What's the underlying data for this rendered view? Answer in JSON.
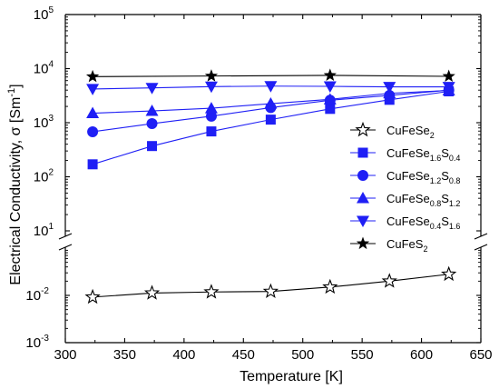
{
  "chart_data": {
    "type": "scatter",
    "xlabel": "Temperature [K]",
    "ylabel_main": "Electrical Conductivity, σ [Sm",
    "ylabel_sup": "-1",
    "ylabel_close": "]",
    "xlim": [
      300,
      650
    ],
    "xticks": [
      "300",
      "350",
      "400",
      "450",
      "500",
      "550",
      "600",
      "650"
    ],
    "yscale": "log",
    "y_axis_break": "between 10^-3..10^-1 segment and 10^1..10^5 segment",
    "ylim_lower": [
      0.001,
      0.1
    ],
    "ylim_upper": [
      10,
      100000
    ],
    "yticks_lower": [
      {
        "b": "10",
        "e": "-3"
      },
      {
        "b": "10",
        "e": "-2"
      }
    ],
    "yticks_upper": [
      {
        "b": "10",
        "e": "1"
      },
      {
        "b": "10",
        "e": "2"
      },
      {
        "b": "10",
        "e": "3"
      },
      {
        "b": "10",
        "e": "4"
      },
      {
        "b": "10",
        "e": "5"
      }
    ],
    "legend_position": "right",
    "series": [
      {
        "name": "CuFeSe2",
        "legend": {
          "base": "CuFeSe",
          "sub1": "2",
          "mid": "",
          "sub2": ""
        },
        "color": "#000000",
        "marker": "star-open",
        "x": [
          323,
          373,
          423,
          473,
          523,
          573,
          623
        ],
        "y": [
          0.0092,
          0.0112,
          0.0118,
          0.0121,
          0.015,
          0.02,
          0.028
        ]
      },
      {
        "name": "CuFeSe1.6S0.4",
        "legend": {
          "base": "CuFeSe",
          "sub1": "1.6",
          "mid": "S",
          "sub2": "0.4"
        },
        "color": "#1f1ff5",
        "marker": "square",
        "x": [
          323,
          373,
          423,
          473,
          523,
          573,
          623
        ],
        "y": [
          170,
          370,
          690,
          1140,
          1800,
          2650,
          3800
        ]
      },
      {
        "name": "CuFeSe1.2S0.8",
        "legend": {
          "base": "CuFeSe",
          "sub1": "1.2",
          "mid": "S",
          "sub2": "0.8"
        },
        "color": "#1f1ff5",
        "marker": "circle",
        "x": [
          323,
          373,
          423,
          473,
          523,
          573,
          623
        ],
        "y": [
          680,
          960,
          1320,
          1900,
          2600,
          3200,
          4000
        ]
      },
      {
        "name": "CuFeSe0.8S1.2",
        "legend": {
          "base": "CuFeSe",
          "sub1": "0.8",
          "mid": "S",
          "sub2": "1.2"
        },
        "color": "#1f1ff5",
        "marker": "triangle-up",
        "x": [
          323,
          373,
          423,
          473,
          523,
          573,
          623
        ],
        "y": [
          1500,
          1650,
          1850,
          2250,
          2700,
          3500,
          3950
        ]
      },
      {
        "name": "CuFeSe0.4S1.6",
        "legend": {
          "base": "CuFeSe",
          "sub1": "0.4",
          "mid": "S",
          "sub2": "1.6"
        },
        "color": "#1f1ff5",
        "marker": "triangle-down",
        "x": [
          323,
          373,
          423,
          473,
          523,
          573,
          623
        ],
        "y": [
          4200,
          4400,
          4650,
          4750,
          4700,
          4600,
          4600
        ]
      },
      {
        "name": "CuFeS2",
        "legend": {
          "base": "CuFeS",
          "sub1": "2",
          "mid": "",
          "sub2": ""
        },
        "color": "#000000",
        "marker": "star-filled",
        "x": [
          323,
          423,
          523,
          623
        ],
        "y": [
          7100,
          7300,
          7500,
          7200
        ]
      }
    ]
  }
}
